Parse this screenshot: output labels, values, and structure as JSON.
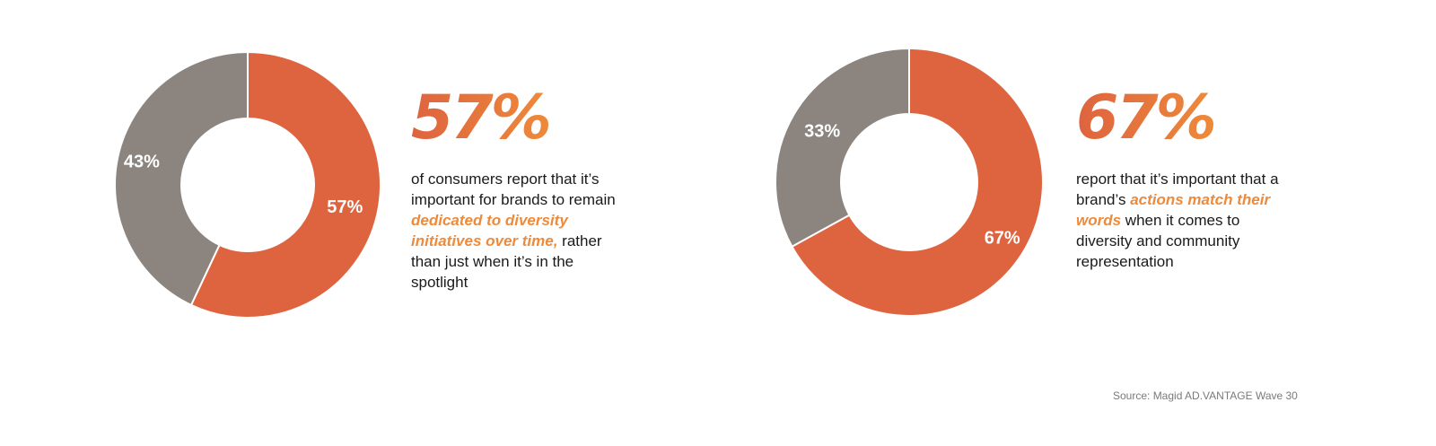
{
  "colors": {
    "accent_red": "#de633f",
    "neutral_gray": "#8c847f",
    "highlight_orange": "#ee8a3a",
    "big_pct_gradient": [
      "#de633f",
      "#ee8a3a"
    ],
    "source_text": "#7a7a7a"
  },
  "chart_data": [
    {
      "type": "pie",
      "variant": "donut",
      "slices": [
        {
          "label": "57%",
          "value": 57,
          "color": "#de633f"
        },
        {
          "label": "43%",
          "value": 43,
          "color": "#8c847f"
        }
      ]
    },
    {
      "type": "pie",
      "variant": "donut",
      "slices": [
        {
          "label": "67%",
          "value": 67,
          "color": "#de633f"
        },
        {
          "label": "33%",
          "value": 33,
          "color": "#8c847f"
        }
      ]
    }
  ],
  "stats": [
    {
      "headline": "57%",
      "text_parts": [
        {
          "text": "of consumers report that it’s important for brands to remain ",
          "highlight": false
        },
        {
          "text": "dedicated to diversity initiatives over time,",
          "highlight": true
        },
        {
          "text": " rather than just when it’s in the spotlight",
          "highlight": false
        }
      ]
    },
    {
      "headline": "67%",
      "text_parts": [
        {
          "text": "report that it’s important that a brand’s ",
          "highlight": false
        },
        {
          "text": "actions match their words",
          "highlight": true
        },
        {
          "text": " when it comes to diversity and community representation",
          "highlight": false
        }
      ]
    }
  ],
  "source": "Source: Magid AD.VANTAGE Wave 30"
}
